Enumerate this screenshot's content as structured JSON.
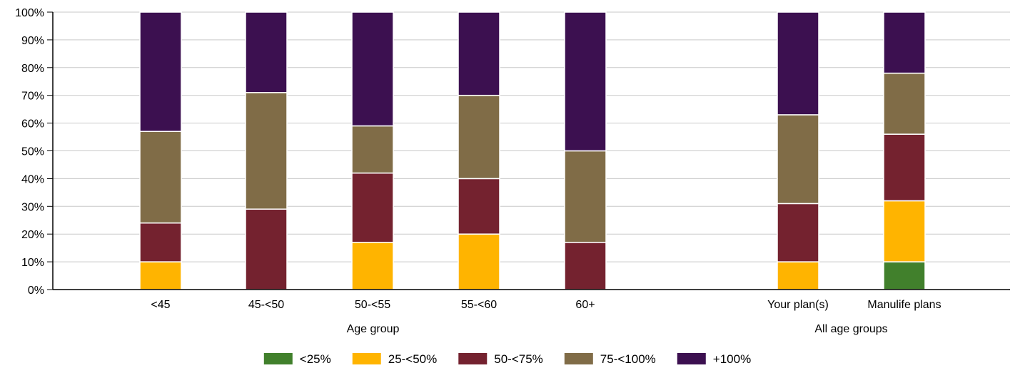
{
  "chart_data": {
    "type": "bar",
    "stacked": true,
    "categories": [
      "<45",
      "45-<50",
      "50-<55",
      "55-<60",
      "60+",
      "Your plan(s)",
      "Manulife plans"
    ],
    "groups": [
      {
        "label": "Age group",
        "categories": [
          "<45",
          "45-<50",
          "50-<55",
          "55-<60",
          "60+"
        ]
      },
      {
        "label": "All age groups",
        "categories": [
          "Your plan(s)",
          "Manulife plans"
        ]
      }
    ],
    "series": [
      {
        "name": "<25%",
        "color": "#41802c",
        "values": [
          0,
          0,
          0,
          0,
          0,
          0,
          10
        ]
      },
      {
        "name": "25-<50%",
        "color": "#ffb400",
        "values": [
          10,
          0,
          17,
          20,
          0,
          10,
          22
        ]
      },
      {
        "name": "50-<75%",
        "color": "#74222f",
        "values": [
          14,
          29,
          25,
          20,
          17,
          21,
          24
        ]
      },
      {
        "name": "75-<100%",
        "color": "#806c47",
        "values": [
          33,
          42,
          17,
          30,
          33,
          32,
          22
        ]
      },
      {
        "name": "+100%",
        "color": "#3c1050",
        "values": [
          43,
          29,
          41,
          30,
          50,
          37,
          22
        ]
      }
    ],
    "yticks": [
      "0%",
      "10%",
      "20%",
      "30%",
      "40%",
      "50%",
      "60%",
      "70%",
      "80%",
      "90%",
      "100%"
    ],
    "ylim": [
      0,
      100
    ],
    "grid": true,
    "legend_position": "bottom"
  }
}
